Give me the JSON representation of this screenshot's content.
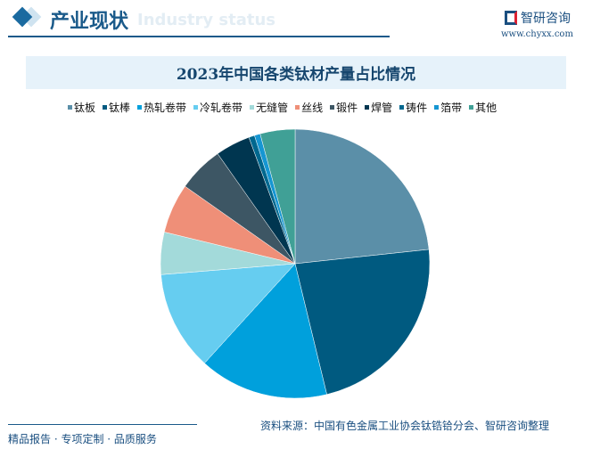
{
  "header": {
    "title": "产业现状",
    "subtitle": "Industry status",
    "logo_text": "智研咨询",
    "url": "www.chyxx.com"
  },
  "footer": {
    "left": "精品报告 · 专项定制 · 品质服务",
    "source": "资料来源：中国有色金属工业协会钛锆铪分会、智研咨询整理"
  },
  "chart_data": {
    "type": "pie",
    "title": "2023年中国各类钛材产量占比情况",
    "legend_position": "top",
    "start": "12 o'clock, clockwise",
    "categories": [
      "钛板",
      "钛棒",
      "热轧卷带",
      "冷轧卷带",
      "无缝管",
      "丝线",
      "锻件",
      "焊管",
      "铸件",
      "箔带",
      "其他"
    ],
    "values": [
      23.4,
      23.0,
      15.6,
      12.0,
      5.1,
      6.0,
      5.5,
      4.2,
      0.7,
      0.7,
      4.2
    ],
    "colors": [
      "#5b8fa8",
      "#005a80",
      "#00a0dc",
      "#66cdf0",
      "#a3dada",
      "#ef8f78",
      "#3d5664",
      "#003650",
      "#00688f",
      "#1696d2",
      "#40a096"
    ]
  }
}
